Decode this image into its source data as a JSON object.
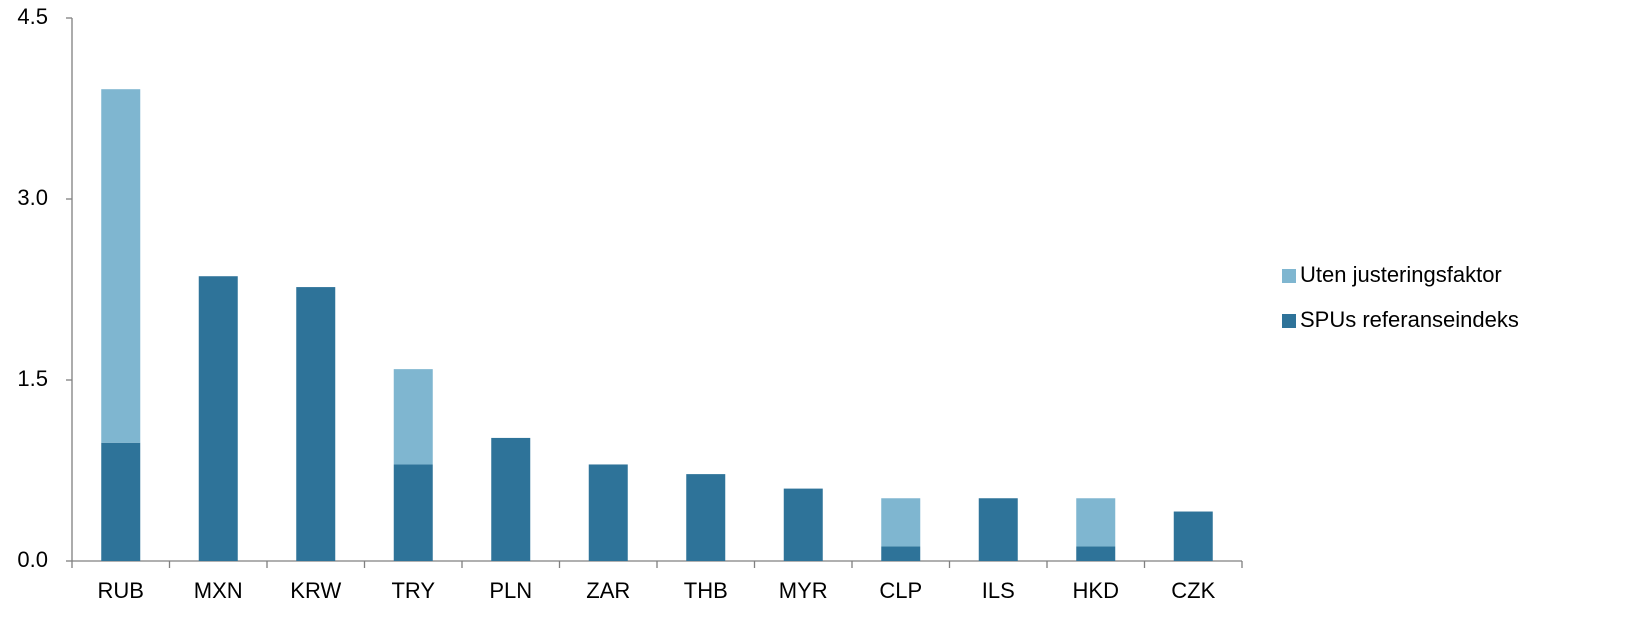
{
  "chart_data": {
    "type": "stacked-bar",
    "categories": [
      "RUB",
      "MXN",
      "KRW",
      "TRY",
      "PLN",
      "ZAR",
      "THB",
      "MYR",
      "CLP",
      "ILS",
      "HKD",
      "CZK"
    ],
    "series": [
      {
        "name": "SPUs referanseindeks",
        "color": "#2e7399",
        "values": [
          0.98,
          2.36,
          2.27,
          0.8,
          1.02,
          0.8,
          0.72,
          0.6,
          0.12,
          0.52,
          0.12,
          0.41
        ]
      },
      {
        "name": "Uten justeringsfaktor",
        "color": "#7fb6d0",
        "values": [
          2.93,
          0,
          0,
          0.79,
          0,
          0,
          0,
          0,
          0.4,
          0,
          0.4,
          0
        ]
      }
    ],
    "ylim": [
      0,
      4.5
    ],
    "yticks": [
      {
        "value": 0,
        "label": "0.0"
      },
      {
        "value": 1.5,
        "label": "1.5"
      },
      {
        "value": 3,
        "label": "3.0"
      },
      {
        "value": 4.5,
        "label": "4.5"
      }
    ],
    "legend": "right"
  }
}
